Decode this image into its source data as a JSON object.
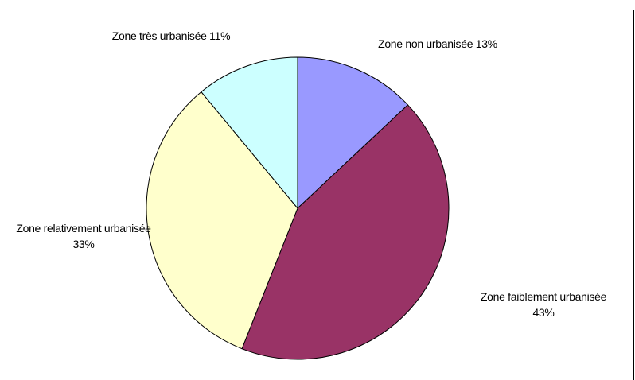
{
  "chart_data": {
    "type": "pie",
    "categories": [
      "Zone non urbanisée",
      "Zone faiblement urbanisée",
      "Zone relativement urbanisée",
      "Zone très urbanisée"
    ],
    "values": [
      13,
      43,
      33,
      11
    ],
    "value_labels": [
      "13%",
      "43%",
      "33%",
      "11%"
    ],
    "colors": [
      "#9999ff",
      "#993366",
      "#ffffcc",
      "#ccffff"
    ]
  }
}
